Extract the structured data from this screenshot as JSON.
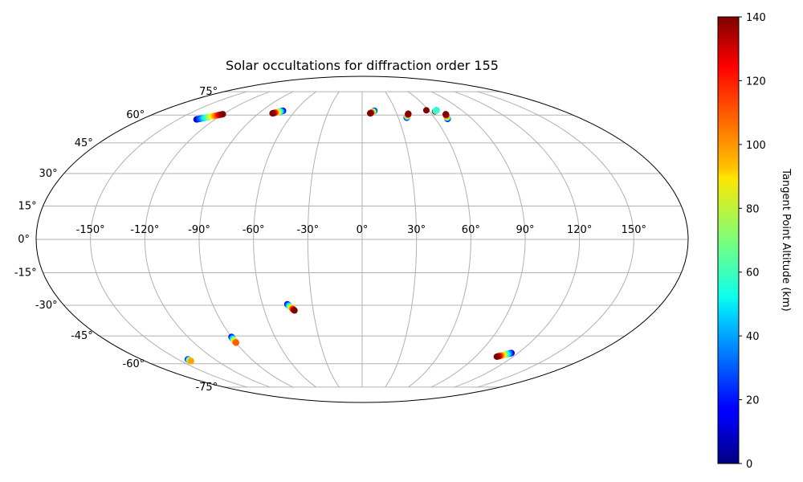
{
  "chart_data": {
    "type": "scatter",
    "projection": "mollweide",
    "title": "Solar occultations for diffraction order 155",
    "xlabel": "",
    "ylabel": "",
    "x_tick_labels": [
      "-150°",
      "-120°",
      "-90°",
      "-60°",
      "-30°",
      "0°",
      "30°",
      "60°",
      "90°",
      "120°",
      "150°"
    ],
    "x_tick_values": [
      -150,
      -120,
      -90,
      -60,
      -30,
      0,
      30,
      60,
      90,
      120,
      150
    ],
    "y_tick_labels": [
      "-75°",
      "-60°",
      "-45°",
      "-30°",
      "-15°",
      "0°",
      "15°",
      "30°",
      "45°",
      "60°",
      "75°"
    ],
    "y_tick_values": [
      -75,
      -60,
      -45,
      -30,
      -15,
      0,
      15,
      30,
      45,
      60,
      75
    ],
    "grid": true,
    "colorbar": {
      "label": "Tangent Point Altitude (km)",
      "min": 0,
      "max": 140,
      "ticks": [
        "0",
        "20",
        "40",
        "60",
        "80",
        "100",
        "120",
        "140"
      ],
      "tick_values": [
        0,
        20,
        40,
        60,
        80,
        100,
        120,
        140
      ],
      "colormap": "jet",
      "location": "right"
    },
    "series": [
      {
        "lon_start": -135,
        "lat_start": 57.5,
        "lon_end": -120,
        "lat_end": 60.5,
        "alt_start": 10,
        "alt_end": 140
      },
      {
        "lon_start": -71,
        "lat_start": 62.5,
        "lon_end": -78,
        "lat_end": 61.0,
        "alt_start": 10,
        "alt_end": 140
      },
      {
        "lon_start": 11,
        "lat_start": 62.5,
        "lon_end": 7,
        "lat_end": 61.0,
        "alt_start": 10,
        "alt_end": 140
      },
      {
        "lon_start": 37,
        "lat_start": 58.5,
        "lon_end": 40,
        "lat_end": 60.8,
        "alt_start": 10,
        "alt_end": 140
      },
      {
        "lon_start": 58,
        "lat_start": 62.8,
        "lon_end": 58,
        "lat_end": 62.8,
        "alt_start": 140,
        "alt_end": 140
      },
      {
        "lon_start": 65,
        "lat_start": 62.2,
        "lon_end": 65,
        "lat_end": 62.2,
        "alt_start": 140,
        "alt_end": 140
      },
      {
        "lon_start": 67,
        "lat_start": 62.8,
        "lon_end": 66,
        "lat_end": 62.5,
        "alt_start": 40,
        "alt_end": 60
      },
      {
        "lon_start": 70,
        "lat_start": 57.8,
        "lon_end": 72,
        "lat_end": 60.5,
        "alt_start": 10,
        "alt_end": 140
      },
      {
        "lon_start": -45,
        "lat_start": -29.5,
        "lon_end": -41.5,
        "lat_end": -32.5,
        "alt_start": 10,
        "alt_end": 140
      },
      {
        "lon_start": -90,
        "lat_start": -45.5,
        "lon_end": -90,
        "lat_end": -48.5,
        "alt_start": 10,
        "alt_end": 110
      },
      {
        "lon_start": -142,
        "lat_start": -57.5,
        "lon_end": -142,
        "lat_end": -58.5,
        "alt_start": 10,
        "alt_end": 100
      },
      {
        "lon_start": 115,
        "lat_start": -54.0,
        "lon_end": 107,
        "lat_end": -56.0,
        "alt_start": 10,
        "alt_end": 140
      }
    ]
  }
}
